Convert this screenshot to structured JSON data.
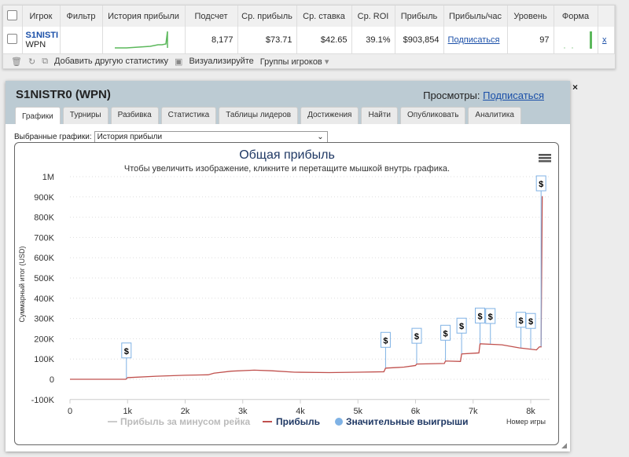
{
  "table": {
    "headers": [
      "Игрок",
      "Фильтр",
      "История прибыли",
      "Подсчет",
      "Ср. прибыль",
      "Ср. ставка",
      "Ср. ROI",
      "Прибыль",
      "Прибыль/час",
      "Уровень",
      "Форма"
    ],
    "row": {
      "player": "S1NISTI",
      "network": "WPN",
      "count": "8,177",
      "avg_profit": "$73.71",
      "avg_stake": "$42.65",
      "avg_roi": "39.1%",
      "profit": "$903,854",
      "profit_hour": "Подписаться",
      "level": "97",
      "remove": "x"
    }
  },
  "toolbar": {
    "add_stat": "Добавить другую статистику",
    "visualize": "Визуализируйте",
    "groups": "Группы игроков"
  },
  "panel": {
    "title": "S1NISTR0 (WPN)",
    "views_label": "Просмотры:",
    "views_link": "Подписаться",
    "close": "×",
    "tabs": [
      "Графики",
      "Турниры",
      "Разбивка",
      "Статистика",
      "Таблицы лидеров",
      "Достижения",
      "Найти",
      "Опубликовать",
      "Аналитика"
    ],
    "selected_label": "Выбранные графики:",
    "selected_value": "История прибыли"
  },
  "colors": {
    "profit": "#c0504d",
    "win_marker": "#7fb2e5",
    "title": "#1f3864"
  },
  "chart_data": {
    "type": "line",
    "title": "Общая прибыль",
    "subtitle": "Чтобы увеличить изображение, кликните и перетащите мышкой внутрь графика.",
    "xlabel": "Номер игры",
    "ylabel": "Суммарный итог (USD)",
    "xlim": [
      0,
      8200
    ],
    "ylim": [
      -100000,
      1000000
    ],
    "grid": true,
    "x_ticks": [
      "0",
      "1k",
      "2k",
      "3k",
      "4k",
      "5k",
      "6k",
      "7k",
      "8k"
    ],
    "y_ticks": [
      "1M",
      "900K",
      "800K",
      "700K",
      "600K",
      "500K",
      "400K",
      "300K",
      "200K",
      "100K",
      "0",
      "-100K"
    ],
    "legend": [
      "Прибыль за минусом рейка",
      "Прибыль",
      "Значительные выигрыши"
    ],
    "legend_position": "bottom",
    "series": [
      {
        "name": "Прибыль",
        "x": [
          0,
          970,
          1000,
          1500,
          2000,
          2400,
          2500,
          2800,
          3200,
          3500,
          3900,
          4500,
          5000,
          5450,
          5480,
          5800,
          6000,
          6020,
          6500,
          6520,
          6780,
          6800,
          7100,
          7120,
          7500,
          7800,
          8100,
          8150,
          8180,
          8200
        ],
        "y": [
          0,
          0,
          8000,
          15000,
          20000,
          22000,
          30000,
          40000,
          45000,
          42000,
          35000,
          33000,
          35000,
          37000,
          55000,
          60000,
          68000,
          75000,
          78000,
          90000,
          88000,
          125000,
          130000,
          175000,
          170000,
          155000,
          145000,
          160000,
          160000,
          903854
        ]
      }
    ],
    "significant_wins": {
      "marker": "$",
      "x": [
        980,
        5480,
        6020,
        6520,
        6800,
        7120,
        7300,
        7830,
        8000,
        8180
      ]
    }
  }
}
